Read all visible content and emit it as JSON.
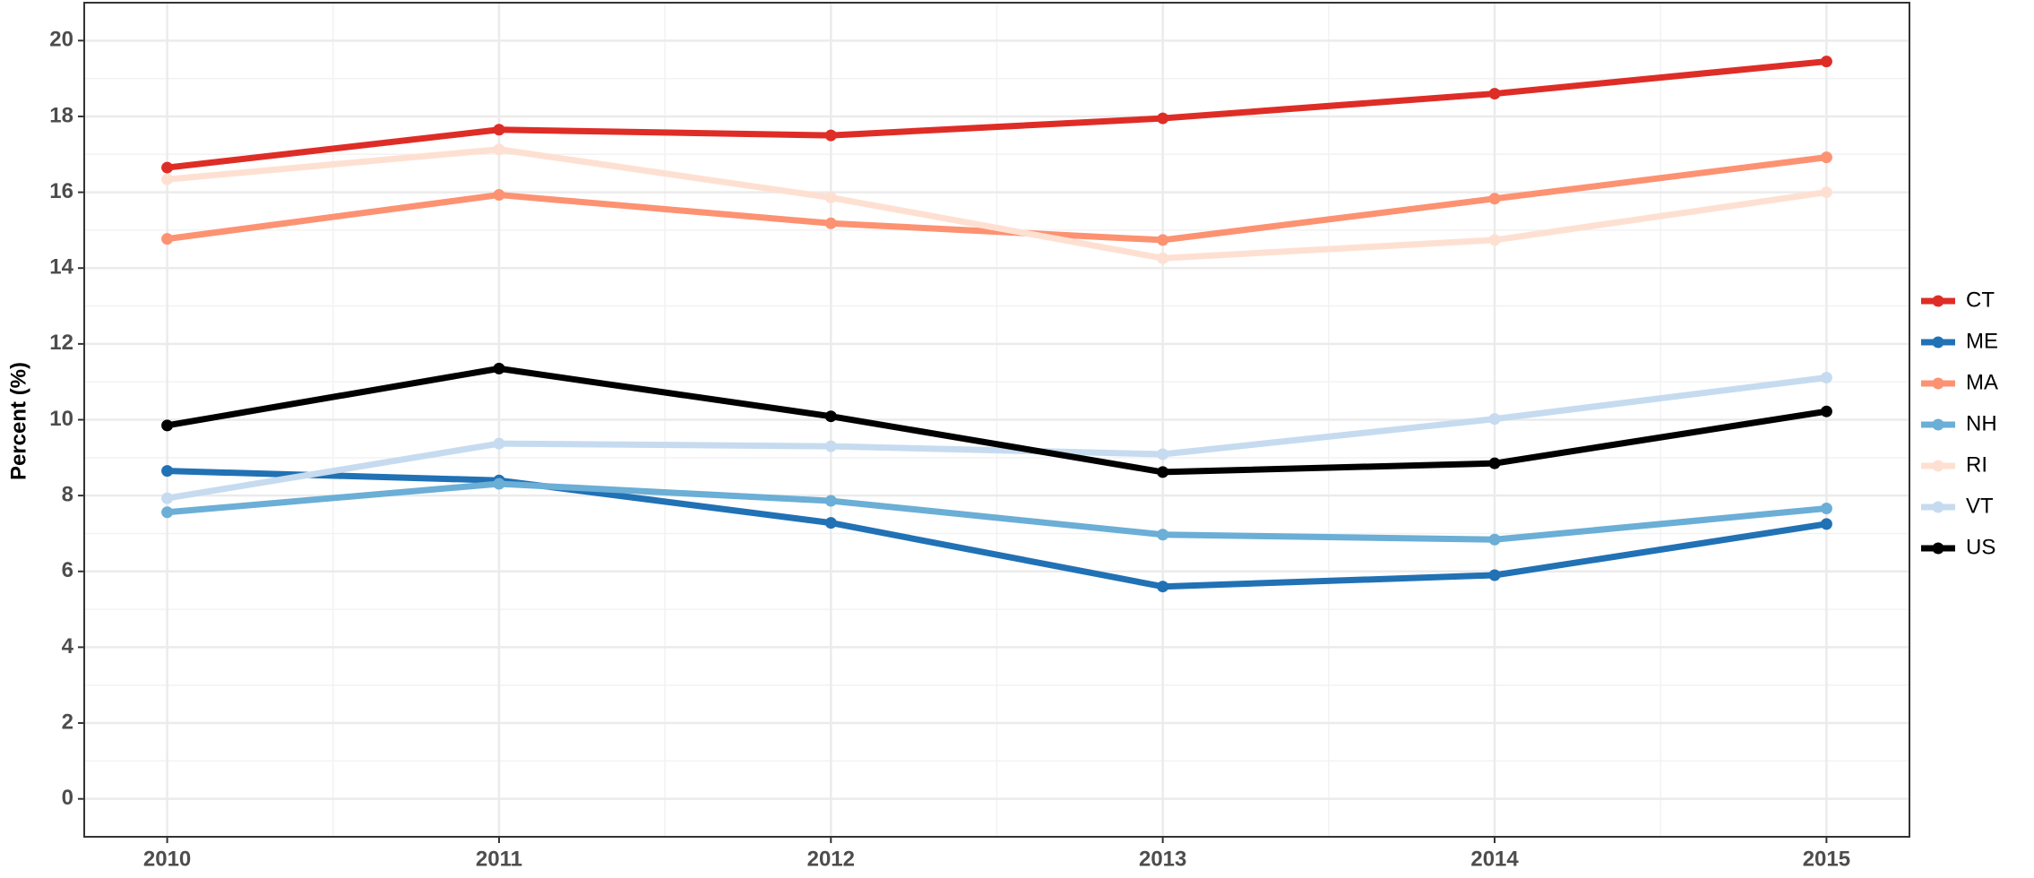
{
  "chart_data": {
    "type": "line",
    "y_label": "Percent (%)",
    "x": [
      2010,
      2011,
      2012,
      2013,
      2014,
      2015
    ],
    "xlim": [
      2009.75,
      2015.25
    ],
    "xticks": [
      2010,
      2011,
      2012,
      2013,
      2014,
      2015
    ],
    "ylim": [
      -1,
      21
    ],
    "yticks": [
      0,
      2,
      4,
      6,
      8,
      10,
      12,
      14,
      16,
      18,
      20
    ],
    "grid": true,
    "minor_grid": true,
    "legend": "right",
    "series": [
      {
        "name": "CT",
        "color": "#de2d26",
        "values": [
          16.65,
          17.65,
          17.5,
          17.95,
          18.6,
          19.45
        ]
      },
      {
        "name": "ME",
        "color": "#2171b5",
        "values": [
          8.65,
          8.4,
          7.28,
          5.6,
          5.9,
          7.25
        ]
      },
      {
        "name": "MA",
        "color": "#fc9272",
        "values": [
          14.77,
          15.93,
          15.18,
          14.74,
          15.83,
          16.92
        ]
      },
      {
        "name": "NH",
        "color": "#6baed6",
        "values": [
          7.56,
          8.31,
          7.86,
          6.97,
          6.84,
          7.66
        ]
      },
      {
        "name": "RI",
        "color": "#fee0d2",
        "values": [
          16.34,
          17.13,
          15.86,
          14.26,
          14.74,
          16.0
        ]
      },
      {
        "name": "VT",
        "color": "#c6dbef",
        "values": [
          7.93,
          9.37,
          9.3,
          9.09,
          10.02,
          11.11
        ]
      },
      {
        "name": "US",
        "color": "#000000",
        "values": [
          9.85,
          11.35,
          10.09,
          8.62,
          8.85,
          10.22
        ]
      }
    ]
  }
}
